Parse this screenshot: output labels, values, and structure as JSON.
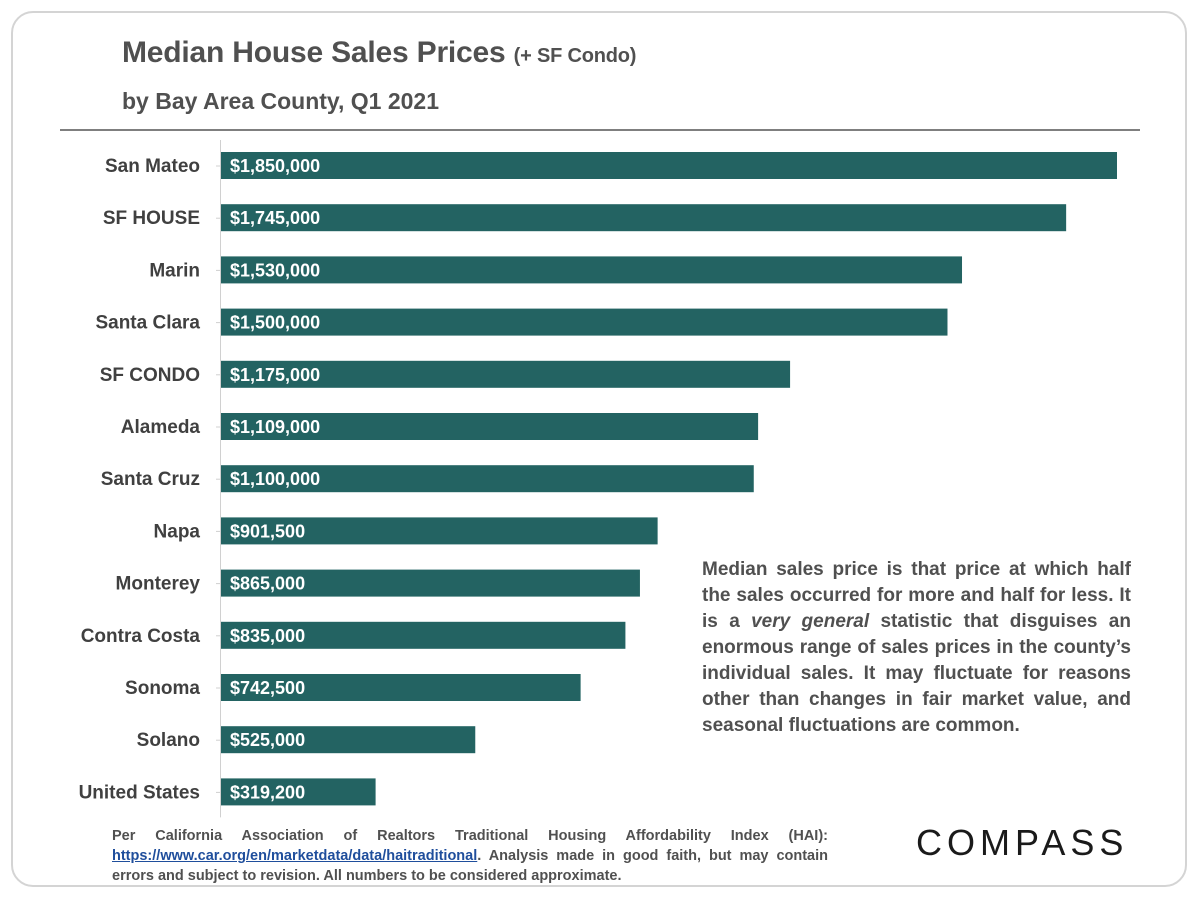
{
  "header": {
    "title": "Median House Sales Prices",
    "title_suffix": "(+ SF Condo)",
    "subtitle": "by Bay Area County, Q1 2021"
  },
  "chart_data": {
    "type": "bar",
    "orientation": "horizontal",
    "title": "Median House Sales Prices (+ SF Condo)",
    "subtitle": "by Bay Area County, Q1 2021",
    "xlabel": "",
    "ylabel": "",
    "categories": [
      "San Mateo",
      "SF HOUSE",
      "Marin",
      "Santa Clara",
      "SF CONDO",
      "Alameda",
      "Santa Cruz",
      "Napa",
      "Monterey",
      "Contra Costa",
      "Sonoma",
      "Solano",
      "United States"
    ],
    "values": [
      1850000,
      1745000,
      1530000,
      1500000,
      1175000,
      1109000,
      1100000,
      901500,
      865000,
      835000,
      742500,
      525000,
      319200
    ],
    "value_labels": [
      "$1,850,000",
      "$1,745,000",
      "$1,530,000",
      "$1,500,000",
      "$1,175,000",
      "$1,109,000",
      "$1,100,000",
      "$901,500",
      "$865,000",
      "$835,000",
      "$742,500",
      "$525,000",
      "$319,200"
    ],
    "xlim": [
      0,
      1850000
    ],
    "grid": false,
    "bar_color": "#236362"
  },
  "note": {
    "part1": "Median sales price is that price at which half the sales occurred for more and half for less. It is a ",
    "emphasis": "very general",
    "part2": " statistic that disguises an enormous range of sales prices in the county’s individual sales. It may fluctuate for reasons other than changes in fair market value, and seasonal fluctuations are common."
  },
  "footnote": {
    "part1": "Per California Association of Realtors Traditional Housing Affordability Index (HAI): ",
    "link": "https://www.car.org/en/marketdata/data/haitraditional",
    "part2": ". Analysis made in good faith, but may contain errors and subject to revision. All numbers to be considered approximate."
  },
  "brand": {
    "logo_text": "COMPASS"
  }
}
